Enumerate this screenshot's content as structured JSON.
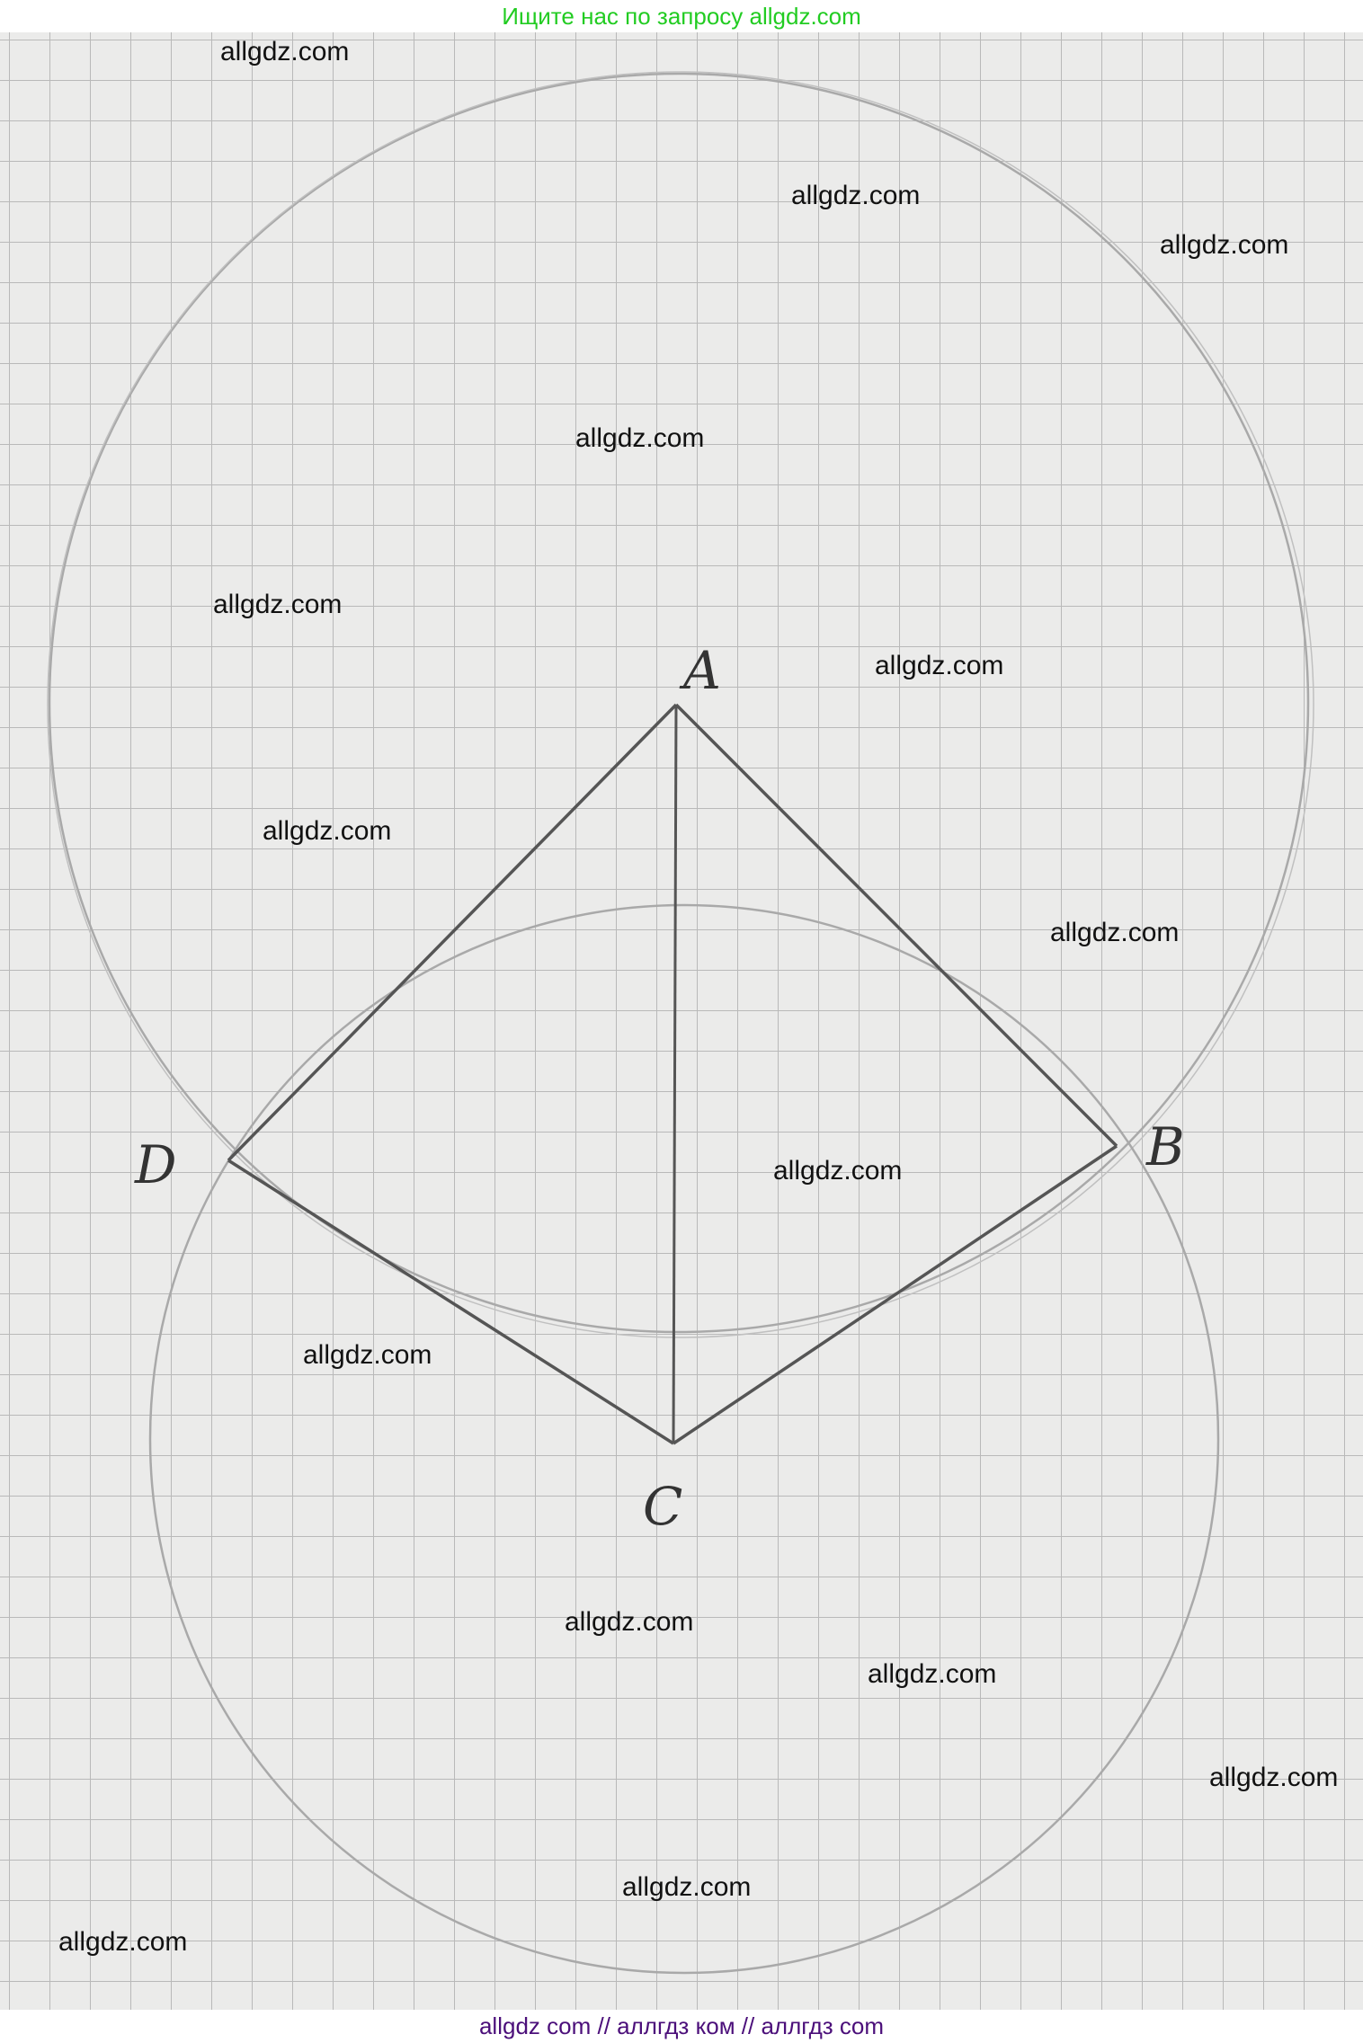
{
  "header": {
    "text": "Ищите нас по запросу allgdz.com",
    "color": "#22cc22"
  },
  "footer": {
    "text": "allgdz com  //  аллгдз ком  //  аллгдз com",
    "color": "#4b0f7a"
  },
  "watermarks": [
    "allgdz.com",
    "allgdz.com",
    "allgdz.com",
    "allgdz.com",
    "allgdz.com",
    "allgdz.com",
    "allgdz.com",
    "allgdz.com",
    "allgdz.com",
    "allgdz.com",
    "allgdz.com",
    "allgdz.com",
    "allgdz.com",
    "allgdz.com",
    "allgdz.com"
  ],
  "diagram": {
    "vertices": {
      "A": "A",
      "B": "B",
      "C": "C",
      "D": "D"
    },
    "figure": "quadrilateral ABCD with diagonal AC, circles centered at A and C"
  }
}
